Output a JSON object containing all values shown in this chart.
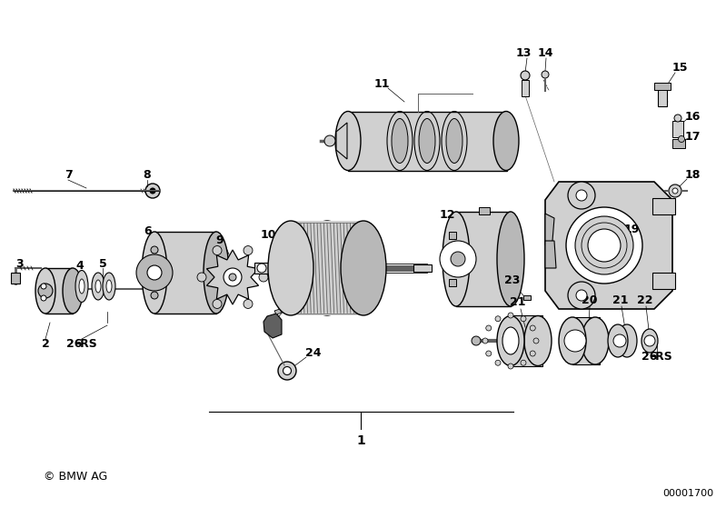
{
  "bg_color": "#ffffff",
  "fg_color": "#000000",
  "copyright": "© BMW AG",
  "part_number": "00001700",
  "lw_main": 1.0,
  "lw_thin": 0.6,
  "lw_thick": 1.5,
  "gray_light": "#d0d0d0",
  "gray_mid": "#a0a0a0",
  "gray_dark": "#606060",
  "gray_fill": "#b8b8b8"
}
